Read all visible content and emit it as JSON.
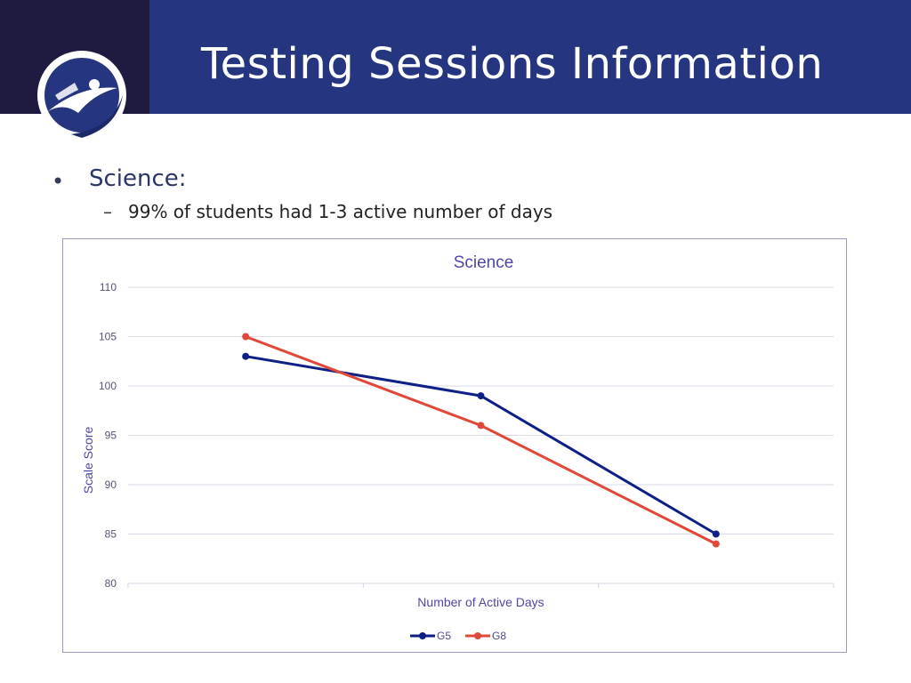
{
  "slide": {
    "title": "Testing Sessions Information",
    "bullet": "Science:",
    "sub_bullet": "99% of students had 1-3 active number of days"
  },
  "colors": {
    "header": "#25357f",
    "logo_block": "#1f1a3f",
    "g5": "#0e1f86",
    "g8": "#e0483a",
    "chart_text": "#4d47a8"
  },
  "logo": {
    "icon": "student-graduation-logo-icon"
  },
  "chart_data": {
    "type": "line",
    "title": "Science",
    "xlabel": "Number of Active Days",
    "ylabel": "Scale Score",
    "categories": [
      "",
      "",
      ""
    ],
    "ylim": [
      80,
      110
    ],
    "yticks": [
      80,
      85,
      90,
      95,
      100,
      105,
      110
    ],
    "grid": true,
    "legend": "bottom",
    "series": [
      {
        "name": "G5",
        "values": [
          103,
          99,
          85
        ]
      },
      {
        "name": "G8",
        "values": [
          105,
          96,
          84
        ]
      }
    ]
  }
}
